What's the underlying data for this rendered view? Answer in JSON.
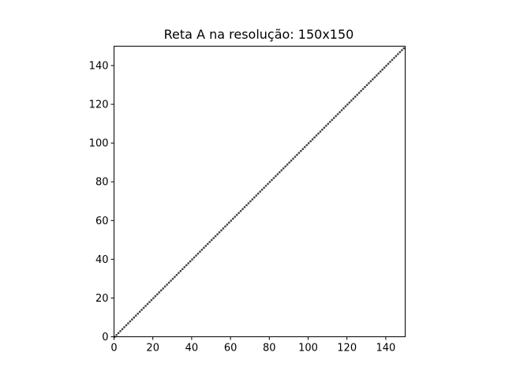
{
  "chart_data": {
    "type": "scatter",
    "title": "Reta A na resolução: 150x150",
    "xlabel": "",
    "ylabel": "",
    "xlim": [
      0,
      150
    ],
    "ylim": [
      0,
      150
    ],
    "x_ticks": [
      0,
      20,
      40,
      60,
      80,
      100,
      120,
      140
    ],
    "y_ticks": [
      0,
      20,
      40,
      60,
      80,
      100,
      120,
      140
    ],
    "grid": false,
    "series": [
      {
        "x_start": 0,
        "x_end": 149,
        "x_step": 1,
        "y_equals_x": true,
        "color": "#000000"
      }
    ]
  }
}
